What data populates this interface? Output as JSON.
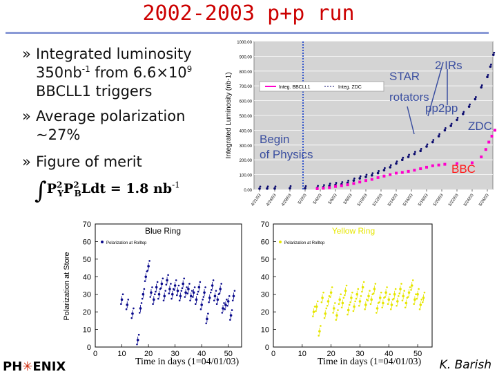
{
  "title": "2002-2003 p+p run",
  "bullets": {
    "b1_marker": "»",
    "b1_l1": "Integrated luminosity",
    "b1_l2a": "350nb",
    "b1_l2b": "-1",
    "b1_l2c": " from 6.6",
    "b1_l2d": "×",
    "b1_l2e": "10",
    "b1_l2f": "9",
    "b1_l3": "BBCLL1 triggers",
    "b2_marker": "»",
    "b2_l1": "Average polarization",
    "b2_l2": "~27%",
    "b3_marker": "»",
    "b3_l1": "Figure of merit"
  },
  "formula": {
    "integral": "∫",
    "p1": "P",
    "s1": "2",
    "u1": "Y",
    "p2": "P",
    "s2": "2",
    "u2": "B",
    "rest": "Ldt = 1.8 nb",
    "exp": "-1"
  },
  "credit": "K. Barish",
  "logo": {
    "left": "PH",
    "star": "✳",
    "right": "ENIX"
  },
  "colors": {
    "title": "#cc0000",
    "rule": "#8a9ad6",
    "zdc": "#0a0a6e",
    "bbc": "#ff00cc",
    "blue": "#0a0a8c",
    "yellow": "#e6e600",
    "annot": "#3b4fa0",
    "bbc_label": "#ff1a1a"
  },
  "chart_data": [
    {
      "type": "scatter",
      "ylabel": "Integrated Luminosity  (nb-1)",
      "ylim": [
        0,
        1000
      ],
      "yticks": [
        "0.00",
        "100.00",
        "200.00",
        "300.00",
        "400.00",
        "500.00",
        "600.00",
        "700.00",
        "800.00",
        "900.00",
        "1000.00"
      ],
      "categories": [
        "4/21/03",
        "4/24/03",
        "4/29/03",
        "5/2/03",
        "5/4/03",
        "5/6/03",
        "5/8/03",
        "5/10/03",
        "5/12/03",
        "5/14/03",
        "5/16/03",
        "5/18/03",
        "5/20/03",
        "5/22/03",
        "5/24/03",
        "5/26/03"
      ],
      "legend": [
        "Integ. BBCLL1",
        "Integ. ZDC"
      ],
      "series": [
        {
          "name": "Integ. ZDC",
          "points": [
            [
              0,
              5
            ],
            [
              0.5,
              6
            ],
            [
              1,
              6
            ],
            [
              2,
              8
            ],
            [
              3,
              8
            ],
            [
              3.8,
              10
            ],
            [
              4.2,
              15
            ],
            [
              4.6,
              25
            ],
            [
              5,
              30
            ],
            [
              5.4,
              35
            ],
            [
              5.8,
              45
            ],
            [
              6.2,
              60
            ],
            [
              6.6,
              75
            ],
            [
              7,
              85
            ],
            [
              7.4,
              95
            ],
            [
              7.8,
              110
            ],
            [
              8.2,
              130
            ],
            [
              8.6,
              150
            ],
            [
              9,
              175
            ],
            [
              9.4,
              200
            ],
            [
              9.8,
              220
            ],
            [
              10.2,
              240
            ],
            [
              10.6,
              260
            ],
            [
              11,
              290
            ],
            [
              11.4,
              320
            ],
            [
              11.8,
              360
            ],
            [
              12.2,
              400
            ],
            [
              12.6,
              430
            ],
            [
              13,
              470
            ],
            [
              13.4,
              510
            ],
            [
              13.8,
              560
            ],
            [
              14.2,
              610
            ],
            [
              14.6,
              690
            ],
            [
              15,
              760
            ],
            [
              15.2,
              830
            ],
            [
              15.4,
              910
            ]
          ]
        },
        {
          "name": "Integ. BBCLL1",
          "points": [
            [
              3.8,
              5
            ],
            [
              4.2,
              8
            ],
            [
              4.6,
              12
            ],
            [
              5,
              20
            ],
            [
              5.4,
              25
            ],
            [
              5.8,
              32
            ],
            [
              6.2,
              40
            ],
            [
              6.6,
              50
            ],
            [
              7,
              60
            ],
            [
              7.4,
              68
            ],
            [
              7.8,
              80
            ],
            [
              8.2,
              90
            ],
            [
              8.6,
              100
            ],
            [
              9,
              110
            ],
            [
              9.4,
              115
            ],
            [
              9.8,
              122
            ],
            [
              10.2,
              130
            ],
            [
              10.6,
              140
            ],
            [
              11,
              150
            ],
            [
              11.4,
              160
            ],
            [
              11.8,
              165
            ],
            [
              12.2,
              170
            ],
            [
              13,
              175
            ],
            [
              14,
              180
            ],
            [
              14.6,
              220
            ],
            [
              14.9,
              270
            ],
            [
              15.1,
              320
            ],
            [
              15.3,
              360
            ],
            [
              15.5,
              400
            ]
          ]
        }
      ],
      "annotations": [
        "2 IRs",
        "STAR rotators",
        "pp2pp",
        "ZDC",
        "Begin of Physics",
        "BBC"
      ]
    },
    {
      "type": "scatter",
      "title": "Blue Ring",
      "xlabel": "Time in days (1=04/01/03)",
      "ylabel": "Polarization at Store",
      "legend": [
        "Polarization at Rolltop"
      ],
      "xlim": [
        0,
        55
      ],
      "ylim": [
        0,
        70
      ],
      "xticks": [
        "0",
        "10",
        "20",
        "30",
        "40",
        "50"
      ],
      "yticks": [
        "0",
        "10",
        "20",
        "30",
        "40",
        "50",
        "60",
        "70"
      ],
      "points": [
        [
          10,
          27
        ],
        [
          12,
          24
        ],
        [
          14,
          19
        ],
        [
          16,
          4
        ],
        [
          17,
          22
        ],
        [
          18,
          30
        ],
        [
          19,
          40
        ],
        [
          20,
          46
        ],
        [
          21,
          31
        ],
        [
          22,
          27
        ],
        [
          23,
          34
        ],
        [
          24,
          30
        ],
        [
          25,
          36
        ],
        [
          26,
          29
        ],
        [
          27,
          38
        ],
        [
          28,
          33
        ],
        [
          29,
          30
        ],
        [
          30,
          35
        ],
        [
          31,
          32
        ],
        [
          32,
          29
        ],
        [
          33,
          36
        ],
        [
          34,
          31
        ],
        [
          35,
          33
        ],
        [
          36,
          29
        ],
        [
          37,
          31
        ],
        [
          38,
          27
        ],
        [
          39,
          34
        ],
        [
          40,
          24
        ],
        [
          41,
          31
        ],
        [
          42,
          16
        ],
        [
          43,
          28
        ],
        [
          44,
          35
        ],
        [
          45,
          29
        ],
        [
          46,
          27
        ],
        [
          47,
          33
        ],
        [
          48,
          22
        ],
        [
          49,
          24
        ],
        [
          50,
          26
        ],
        [
          51,
          18
        ],
        [
          52,
          29
        ]
      ]
    },
    {
      "type": "scatter",
      "title": "Yellow Ring",
      "xlabel": "Time in days (1=04/01/03)",
      "legend": [
        "Polarization at Rolltop"
      ],
      "xlim": [
        0,
        55
      ],
      "ylim": [
        0,
        70
      ],
      "xticks": [
        "0",
        "10",
        "20",
        "30",
        "40",
        "50"
      ],
      "yticks": [
        "0",
        "10",
        "20",
        "30",
        "40",
        "50",
        "60",
        "70"
      ],
      "points": [
        [
          14,
          20
        ],
        [
          15,
          23
        ],
        [
          16,
          9
        ],
        [
          17,
          28
        ],
        [
          18,
          19
        ],
        [
          19,
          26
        ],
        [
          20,
          31
        ],
        [
          21,
          22
        ],
        [
          22,
          18
        ],
        [
          23,
          27
        ],
        [
          24,
          25
        ],
        [
          25,
          32
        ],
        [
          26,
          21
        ],
        [
          27,
          28
        ],
        [
          28,
          23
        ],
        [
          29,
          30
        ],
        [
          30,
          26
        ],
        [
          31,
          34
        ],
        [
          32,
          24
        ],
        [
          33,
          29
        ],
        [
          34,
          27
        ],
        [
          35,
          33
        ],
        [
          36,
          22
        ],
        [
          37,
          28
        ],
        [
          38,
          25
        ],
        [
          39,
          31
        ],
        [
          40,
          27
        ],
        [
          41,
          24
        ],
        [
          42,
          30
        ],
        [
          43,
          26
        ],
        [
          44,
          33
        ],
        [
          45,
          29
        ],
        [
          46,
          25
        ],
        [
          47,
          31
        ],
        [
          48,
          35
        ],
        [
          49,
          27
        ],
        [
          50,
          30
        ],
        [
          51,
          24
        ],
        [
          52,
          28
        ]
      ]
    }
  ]
}
